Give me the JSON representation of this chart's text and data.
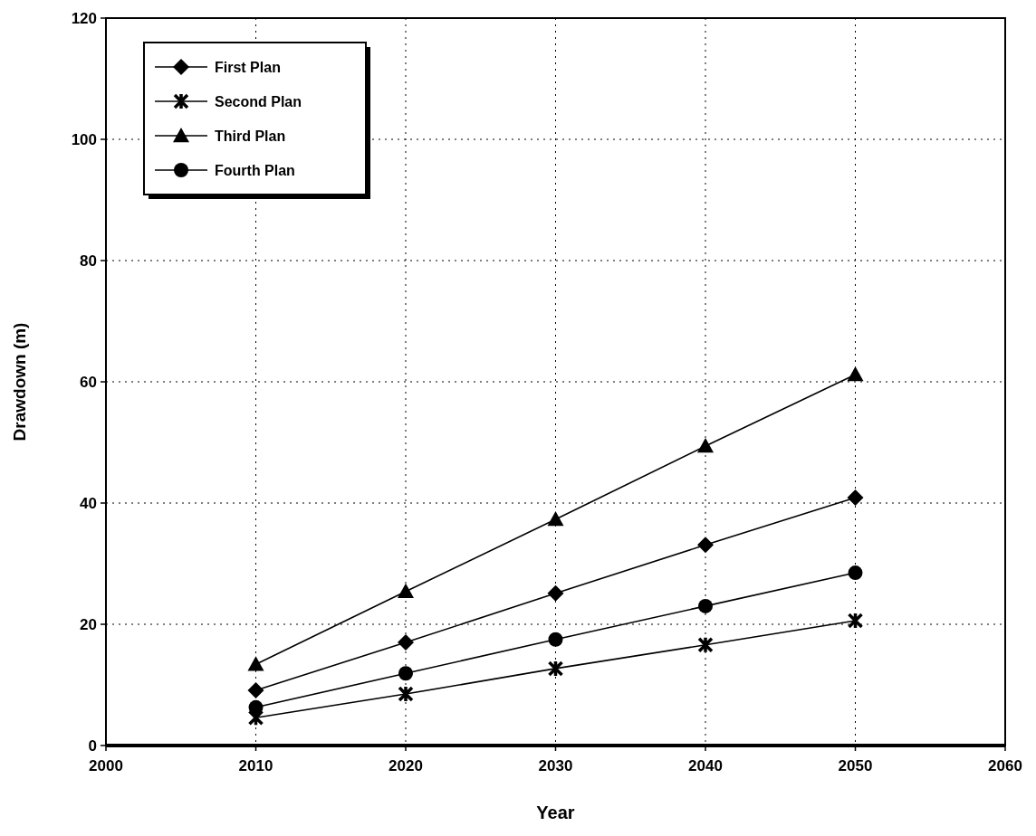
{
  "chart_data": {
    "type": "line",
    "xlabel": "Year",
    "ylabel": "Drawdown (m)",
    "x": [
      2010,
      2020,
      2030,
      2040,
      2050
    ],
    "series": [
      {
        "name": "First Plan",
        "color": "#000000",
        "marker": "diamond",
        "values": [
          9.1,
          17.0,
          25.1,
          33.1,
          40.9
        ]
      },
      {
        "name": "Second Plan",
        "color": "#000000",
        "marker": "cross",
        "values": [
          4.6,
          8.5,
          12.7,
          16.6,
          20.6
        ]
      },
      {
        "name": "Third Plan",
        "color": "#000000",
        "marker": "triangle",
        "values": [
          13.4,
          25.4,
          37.3,
          49.4,
          61.2
        ]
      },
      {
        "name": "Fourth Plan",
        "color": "#000000",
        "marker": "circle",
        "values": [
          6.3,
          11.9,
          17.5,
          23.0,
          28.5
        ]
      }
    ],
    "xlim": [
      2000,
      2060
    ],
    "xticks": [
      2000,
      2010,
      2020,
      2030,
      2040,
      2050,
      2060
    ],
    "ylim": [
      0,
      120
    ],
    "yticks": [
      0,
      20,
      40,
      60,
      80,
      100,
      120
    ],
    "grid": true,
    "legend": "top left",
    "line_style": "solid"
  }
}
